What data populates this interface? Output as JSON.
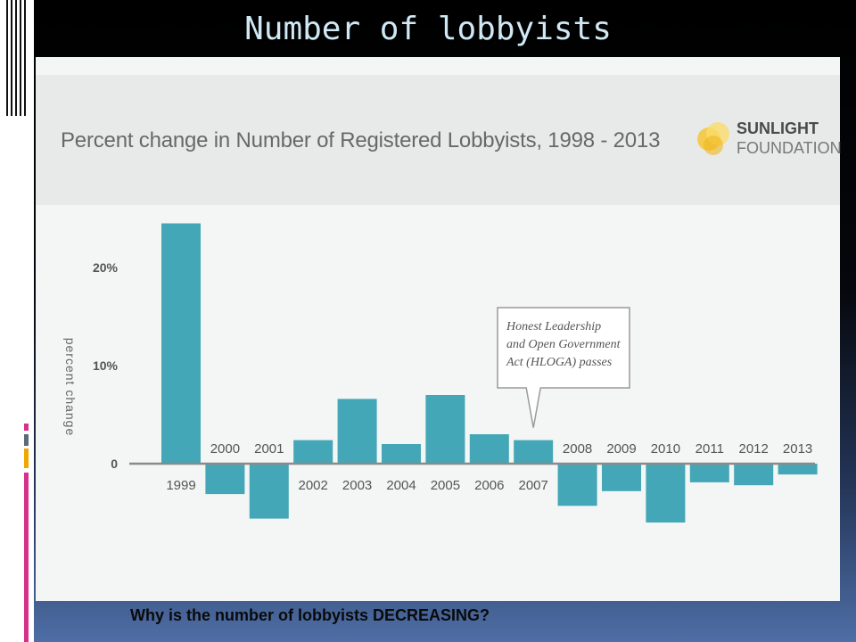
{
  "slide": {
    "title": "Number of lobbyists",
    "question": "Why is the number of lobbyists DECREASING?"
  },
  "logo": {
    "name": "SUNLIGHT",
    "sub": "FOUNDATION"
  },
  "annotation": {
    "lines": [
      "Honest Leadership",
      "and Open Government",
      "Act (HLOGA) passes"
    ],
    "target": "2007"
  },
  "colors": {
    "bar": "#43a7b7",
    "axis": "#8a8a8a",
    "accent_pink": "#d6308a",
    "accent_gray": "#5a6b7b",
    "accent_gold": "#f0a800"
  },
  "chart_data": {
    "type": "bar",
    "title": "Percent change in Number of Registered Lobbyists, 1998 - 2013",
    "ylabel": "percent change",
    "xlabel": "",
    "ylim": [
      -7,
      25
    ],
    "yticks": [
      0,
      10,
      20
    ],
    "yticklabels": [
      "0",
      "10%",
      "20%"
    ],
    "grid": false,
    "categories": [
      "1999",
      "2000",
      "2001",
      "2002",
      "2003",
      "2004",
      "2005",
      "2006",
      "2007",
      "2008",
      "2009",
      "2010",
      "2011",
      "2012",
      "2013"
    ],
    "values": [
      24.5,
      -3.1,
      -5.6,
      2.4,
      6.6,
      2.0,
      7.0,
      3.0,
      2.4,
      -4.3,
      -2.8,
      -6.0,
      -1.9,
      -2.2,
      -1.1
    ]
  }
}
